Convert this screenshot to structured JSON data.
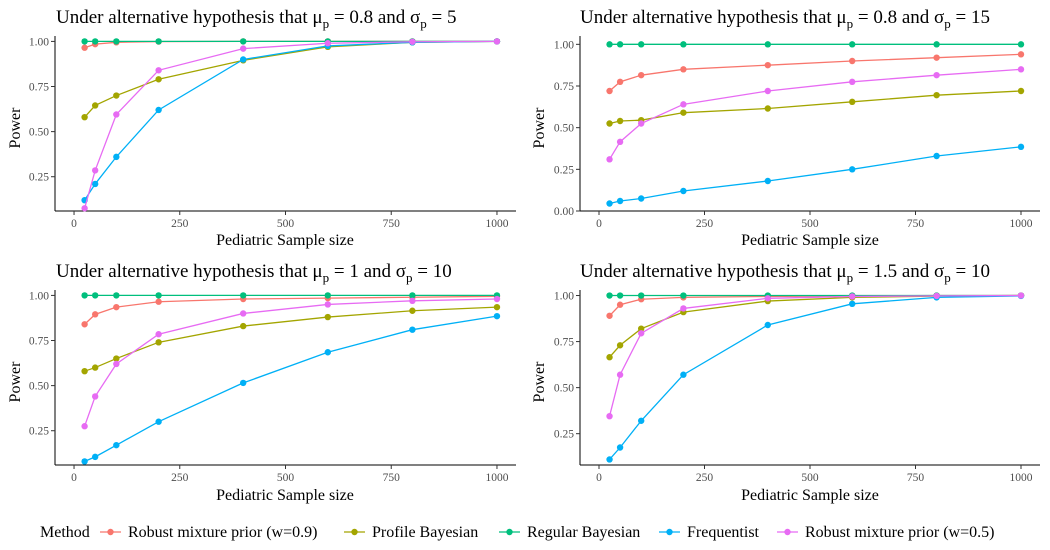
{
  "legend": {
    "title": "Method",
    "items": [
      {
        "name": "Robust mixture prior (w=0.9)",
        "color": "#F8766D"
      },
      {
        "name": "Profile Bayesian",
        "color": "#A3A500"
      },
      {
        "name": "Regular Bayesian",
        "color": "#00BF7D"
      },
      {
        "name": "Frequentist",
        "color": "#00B0F6"
      },
      {
        "name": "Robust mixture prior (w=0.5)",
        "color": "#E76BF3"
      }
    ]
  },
  "chart_data": [
    {
      "type": "line",
      "title_prefix": "Under alternative hypothesis that μ",
      "title_mu_sub": "p",
      "title_mu_value": " = 0.8 and σ",
      "title_sigma_sub": "p",
      "title_sigma_value": " = 5",
      "xlabel": "Pediatric Sample size",
      "ylabel": "Power",
      "xlim": [
        0,
        1000
      ],
      "ylim": [
        0.06,
        1.03
      ],
      "xticks": [
        0,
        250,
        500,
        750,
        1000
      ],
      "xtick_labels": [
        "0",
        "250",
        "500",
        "750",
        "1000"
      ],
      "yticks": [
        0.25,
        0.5,
        0.75,
        1.0
      ],
      "ytick_labels": [
        "0.25",
        "0.50",
        "0.75",
        "1.00"
      ],
      "x": [
        25,
        50,
        100,
        200,
        400,
        600,
        800,
        1000
      ],
      "series": [
        {
          "name": "Robust mixture prior (w=0.9)",
          "values": [
            0.965,
            0.985,
            0.995,
            0.999,
            1.0,
            1.0,
            1.0,
            1.0
          ]
        },
        {
          "name": "Profile Bayesian",
          "values": [
            0.58,
            0.645,
            0.7,
            0.79,
            0.895,
            0.97,
            0.995,
            1.0
          ]
        },
        {
          "name": "Regular Bayesian",
          "values": [
            1.0,
            1.0,
            1.0,
            1.0,
            1.0,
            1.0,
            1.0,
            1.0
          ]
        },
        {
          "name": "Frequentist",
          "values": [
            0.12,
            0.21,
            0.36,
            0.62,
            0.9,
            0.975,
            0.995,
            1.0
          ]
        },
        {
          "name": "Robust mixture prior (w=0.5)",
          "values": [
            0.075,
            0.285,
            0.595,
            0.84,
            0.96,
            0.99,
            0.998,
            1.0
          ]
        }
      ]
    },
    {
      "type": "line",
      "title_prefix": "Under alternative hypothesis that μ",
      "title_mu_sub": "p",
      "title_mu_value": " = 0.8 and σ",
      "title_sigma_sub": "p",
      "title_sigma_value": " = 15",
      "xlabel": "Pediatric Sample size",
      "ylabel": "Power",
      "xlim": [
        0,
        1000
      ],
      "ylim": [
        0.0,
        1.05
      ],
      "xticks": [
        0,
        250,
        500,
        750,
        1000
      ],
      "xtick_labels": [
        "0",
        "250",
        "500",
        "750",
        "1000"
      ],
      "yticks": [
        0.0,
        0.25,
        0.5,
        0.75,
        1.0
      ],
      "ytick_labels": [
        "0.00",
        "0.25",
        "0.50",
        "0.75",
        "1.00"
      ],
      "x": [
        25,
        50,
        100,
        200,
        400,
        600,
        800,
        1000
      ],
      "series": [
        {
          "name": "Robust mixture prior (w=0.9)",
          "values": [
            0.72,
            0.775,
            0.815,
            0.85,
            0.875,
            0.9,
            0.92,
            0.94
          ]
        },
        {
          "name": "Profile Bayesian",
          "values": [
            0.525,
            0.54,
            0.545,
            0.59,
            0.615,
            0.655,
            0.695,
            0.72
          ]
        },
        {
          "name": "Regular Bayesian",
          "values": [
            1.0,
            1.0,
            1.0,
            1.0,
            1.0,
            1.0,
            1.0,
            1.0
          ]
        },
        {
          "name": "Frequentist",
          "values": [
            0.045,
            0.06,
            0.075,
            0.12,
            0.18,
            0.25,
            0.33,
            0.385
          ]
        },
        {
          "name": "Robust mixture prior (w=0.5)",
          "values": [
            0.31,
            0.415,
            0.525,
            0.64,
            0.72,
            0.775,
            0.815,
            0.85
          ]
        }
      ]
    },
    {
      "type": "line",
      "title_prefix": "Under alternative hypothesis that μ",
      "title_mu_sub": "p",
      "title_mu_value": " = 1 and σ",
      "title_sigma_sub": "p",
      "title_sigma_value": " = 10",
      "xlabel": "Pediatric Sample size",
      "ylabel": "Power",
      "xlim": [
        0,
        1000
      ],
      "ylim": [
        0.06,
        1.03
      ],
      "xticks": [
        0,
        250,
        500,
        750,
        1000
      ],
      "xtick_labels": [
        "0",
        "250",
        "500",
        "750",
        "1000"
      ],
      "yticks": [
        0.25,
        0.5,
        0.75,
        1.0
      ],
      "ytick_labels": [
        "0.25",
        "0.50",
        "0.75",
        "1.00"
      ],
      "x": [
        25,
        50,
        100,
        200,
        400,
        600,
        800,
        1000
      ],
      "series": [
        {
          "name": "Robust mixture prior (w=0.9)",
          "values": [
            0.84,
            0.895,
            0.935,
            0.965,
            0.98,
            0.985,
            0.99,
            0.995
          ]
        },
        {
          "name": "Profile Bayesian",
          "values": [
            0.58,
            0.6,
            0.65,
            0.74,
            0.83,
            0.88,
            0.915,
            0.935
          ]
        },
        {
          "name": "Regular Bayesian",
          "values": [
            1.0,
            1.0,
            1.0,
            1.0,
            1.0,
            1.0,
            1.0,
            1.0
          ]
        },
        {
          "name": "Frequentist",
          "values": [
            0.08,
            0.105,
            0.17,
            0.3,
            0.515,
            0.685,
            0.81,
            0.885
          ]
        },
        {
          "name": "Robust mixture prior (w=0.5)",
          "values": [
            0.275,
            0.44,
            0.62,
            0.785,
            0.9,
            0.95,
            0.97,
            0.98
          ]
        }
      ]
    },
    {
      "type": "line",
      "title_prefix": "Under alternative hypothesis that μ",
      "title_mu_sub": "p",
      "title_mu_value": " = 1.5 and σ",
      "title_sigma_sub": "p",
      "title_sigma_value": " = 10",
      "xlabel": "Pediatric Sample size",
      "ylabel": "Power",
      "xlim": [
        0,
        1000
      ],
      "ylim": [
        0.08,
        1.03
      ],
      "xticks": [
        0,
        250,
        500,
        750,
        1000
      ],
      "xtick_labels": [
        "0",
        "250",
        "500",
        "750",
        "1000"
      ],
      "yticks": [
        0.25,
        0.5,
        0.75,
        1.0
      ],
      "ytick_labels": [
        "0.25",
        "0.50",
        "0.75",
        "1.00"
      ],
      "x": [
        25,
        50,
        100,
        200,
        400,
        600,
        800,
        1000
      ],
      "series": [
        {
          "name": "Robust mixture prior (w=0.9)",
          "values": [
            0.89,
            0.95,
            0.98,
            0.99,
            0.995,
            0.998,
            1.0,
            1.0
          ]
        },
        {
          "name": "Profile Bayesian",
          "values": [
            0.665,
            0.73,
            0.82,
            0.91,
            0.97,
            0.99,
            0.997,
            1.0
          ]
        },
        {
          "name": "Regular Bayesian",
          "values": [
            1.0,
            1.0,
            1.0,
            1.0,
            1.0,
            1.0,
            1.0,
            1.0
          ]
        },
        {
          "name": "Frequentist",
          "values": [
            0.11,
            0.175,
            0.32,
            0.57,
            0.84,
            0.955,
            0.99,
            0.998
          ]
        },
        {
          "name": "Robust mixture prior (w=0.5)",
          "values": [
            0.345,
            0.57,
            0.795,
            0.93,
            0.985,
            0.995,
            0.998,
            1.0
          ]
        }
      ]
    }
  ]
}
